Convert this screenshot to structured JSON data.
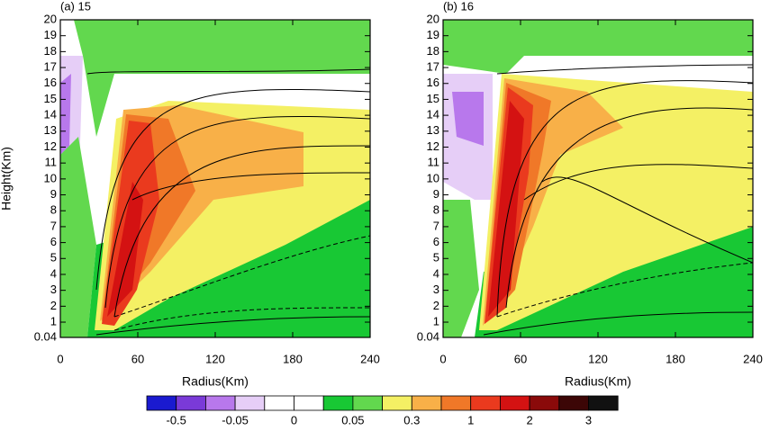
{
  "chart_data": [
    {
      "type": "contour",
      "title": "(a) 15",
      "xlabel": "Radius(Km)",
      "ylabel": "Height(Km)",
      "xlim": [
        0,
        240
      ],
      "xticks": [
        0,
        60,
        120,
        180,
        240
      ],
      "ylim": [
        0.04,
        20
      ],
      "yticks": [
        0.04,
        1,
        2,
        3,
        4,
        5,
        6,
        7,
        8,
        9,
        10,
        11,
        12,
        13,
        14,
        15,
        16,
        17,
        18,
        19,
        20
      ]
    },
    {
      "type": "contour",
      "title": "(b) 16",
      "xlabel": "Radius(Km)",
      "xlim": [
        0,
        240
      ],
      "xticks": [
        0,
        60,
        120,
        180,
        240
      ],
      "ylim": [
        0.04,
        20
      ],
      "yticks": [
        0.04,
        1,
        2,
        3,
        4,
        5,
        6,
        7,
        8,
        9,
        10,
        11,
        12,
        13,
        14,
        15,
        16,
        17,
        18,
        19,
        20
      ]
    }
  ],
  "colorbar": {
    "colors": [
      "#1a1ad0",
      "#7a3ad8",
      "#b878ec",
      "#e6cef7",
      "#ffffff",
      "#ffffff",
      "#18c834",
      "#62d84e",
      "#f4f064",
      "#f8b048",
      "#f07828",
      "#ea3a1e",
      "#d41212",
      "#8a0a0a",
      "#3c0606",
      "#111111"
    ],
    "labels": [
      -0.5,
      -0.05,
      0,
      0.05,
      0.3,
      1,
      2,
      3
    ]
  }
}
